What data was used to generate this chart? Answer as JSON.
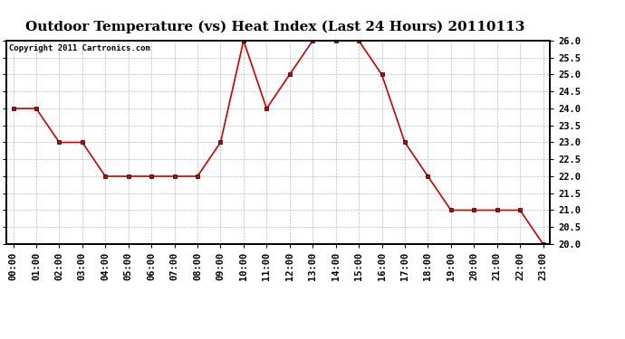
{
  "title": "Outdoor Temperature (vs) Heat Index (Last 24 Hours) 20110113",
  "copyright": "Copyright 2011 Cartronics.com",
  "x_labels": [
    "00:00",
    "01:00",
    "02:00",
    "03:00",
    "04:00",
    "05:00",
    "06:00",
    "07:00",
    "08:00",
    "09:00",
    "10:00",
    "11:00",
    "12:00",
    "13:00",
    "14:00",
    "15:00",
    "16:00",
    "17:00",
    "18:00",
    "19:00",
    "20:00",
    "21:00",
    "22:00",
    "23:00"
  ],
  "y_values": [
    24.0,
    24.0,
    23.0,
    23.0,
    22.0,
    22.0,
    22.0,
    22.0,
    22.0,
    23.0,
    26.0,
    24.0,
    25.0,
    26.0,
    26.0,
    26.0,
    25.0,
    23.0,
    22.0,
    21.0,
    21.0,
    21.0,
    21.0,
    20.0
  ],
  "line_color": "#cc0000",
  "marker_color": "#000000",
  "background_color": "#ffffff",
  "grid_color": "#aaaaaa",
  "ylim_min": 20.0,
  "ylim_max": 26.0,
  "ytick_step": 0.5,
  "title_fontsize": 11,
  "copyright_fontsize": 6.5,
  "tick_fontsize": 7.5
}
